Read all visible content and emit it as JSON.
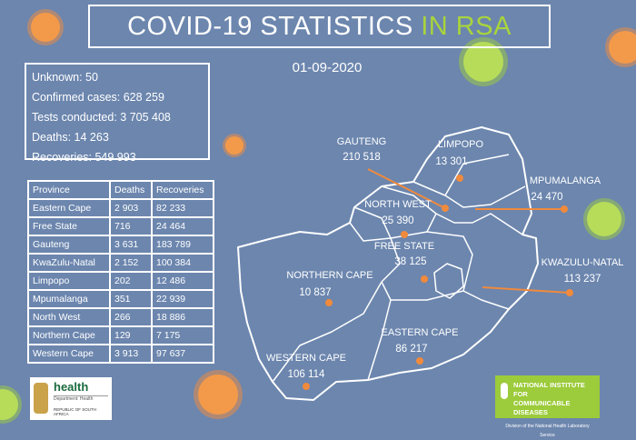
{
  "title": {
    "main": "COVID-19 STATISTICS",
    "highlight": "IN RSA"
  },
  "date": "01-09-2020",
  "summary": [
    {
      "text": "Unknown: 50"
    },
    {
      "text": "Confirmed cases: 628 259"
    },
    {
      "text": "Tests conducted: 3 705 408"
    },
    {
      "text": "Deaths: 14 263"
    },
    {
      "text": "Recoveries: 549 993"
    }
  ],
  "table": {
    "headers": [
      "Province",
      "Deaths",
      "Recoveries"
    ],
    "rows": [
      [
        "Eastern Cape",
        "2 903",
        "82 233"
      ],
      [
        "Free State",
        "716",
        "24 464"
      ],
      [
        "Gauteng",
        "3 631",
        "183 789"
      ],
      [
        "KwaZulu-Natal",
        "2 152",
        "100 384"
      ],
      [
        "Limpopo",
        "202",
        "12 486"
      ],
      [
        "Mpumalanga",
        "351",
        "22 939"
      ],
      [
        "North West",
        "266",
        "18 886"
      ],
      [
        "Northern Cape",
        "129",
        "7 175"
      ],
      [
        "Western Cape",
        "3 913",
        "97 637"
      ]
    ]
  },
  "map": {
    "gauteng": {
      "name": "GAUTENG",
      "cases": "210 518"
    },
    "limpopo": {
      "name": "LIMPOPO",
      "cases": "13 301"
    },
    "mpumalanga": {
      "name": "MPUMALANGA",
      "cases": "24 470"
    },
    "north_west": {
      "name": "NORTH WEST",
      "cases": "25 390"
    },
    "free_state": {
      "name": "FREE STATE",
      "cases": "38 125"
    },
    "kwazulu_natal": {
      "name": "KWAZULU-NATAL",
      "cases": "113 237"
    },
    "northern_cape": {
      "name": "NORTHERN CAPE",
      "cases": "10 837"
    },
    "eastern_cape": {
      "name": "EASTERN CAPE",
      "cases": "86 217"
    },
    "western_cape": {
      "name": "WESTERN CAPE",
      "cases": "106 114"
    }
  },
  "logos": {
    "health": {
      "word": "health",
      "dept": "Department: Health",
      "country": "REPUBLIC OF SOUTH AFRICA"
    },
    "nicd": {
      "line1": "NATIONAL INSTITUTE FOR",
      "line2": "COMMUNICABLE DISEASES",
      "sub": "Division of the National Health Laboratory Service"
    }
  },
  "colors": {
    "background": "#6c86ae",
    "accent_green": "#a9d43c",
    "marker_orange": "#f08a3c"
  }
}
